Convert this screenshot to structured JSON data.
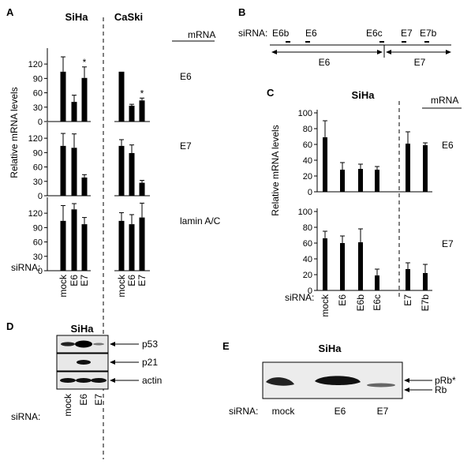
{
  "panel_letters": {
    "A": "A",
    "B": "B",
    "C": "C",
    "D": "D",
    "E": "E"
  },
  "common": {
    "siRNA_label": "siRNA:",
    "mRNA_label": "mRNA",
    "ylabel": "Relative mRNA levels",
    "sig_mark": "*"
  },
  "panel_b": {
    "siRNA_label": "siRNA:",
    "sites": [
      "E6b",
      "E6",
      "E6c",
      "E7",
      "E7b"
    ],
    "regions": [
      "E6",
      "E7"
    ]
  },
  "panel_d": {
    "title": "SiHa",
    "bands": [
      "p53",
      "p21",
      "actin"
    ],
    "lanes": [
      "mock",
      "E6",
      "E7"
    ]
  },
  "panel_e": {
    "title": "SiHa",
    "bands": [
      "pRb*",
      "Rb"
    ],
    "lanes": [
      "mock",
      "E6",
      "E7"
    ]
  },
  "chart_data": [
    {
      "type": "bar",
      "panel": "A",
      "groups": [
        "SiHa",
        "CaSki"
      ],
      "categories": [
        "mock",
        "E6",
        "E7"
      ],
      "ylim": [
        0,
        140
      ],
      "yticks": [
        0,
        30,
        60,
        90,
        120
      ],
      "ylabel": "Relative mRNA levels",
      "rows": [
        {
          "mRNA": "E6",
          "series": [
            {
              "group": "SiHa",
              "values": [
                104,
                41,
                91
              ],
              "errors": [
                31,
                14,
                23
              ],
              "significant": [
                false,
                false,
                true
              ]
            },
            {
              "group": "CaSki",
              "values": [
                104,
                33,
                44
              ],
              "errors": [
                0,
                3,
                5
              ],
              "significant": [
                false,
                false,
                true
              ]
            }
          ]
        },
        {
          "mRNA": "E7",
          "series": [
            {
              "group": "SiHa",
              "values": [
                104,
                100,
                38
              ],
              "errors": [
                26,
                29,
                6
              ],
              "significant": [
                false,
                false,
                false
              ]
            },
            {
              "group": "CaSki",
              "values": [
                104,
                89,
                27
              ],
              "errors": [
                13,
                17,
                5
              ],
              "significant": [
                false,
                false,
                false
              ]
            }
          ]
        },
        {
          "mRNA": "lamin A/C",
          "series": [
            {
              "group": "SiHa",
              "values": [
                104,
                128,
                97
              ],
              "errors": [
                32,
                12,
                14
              ],
              "significant": [
                false,
                false,
                false
              ]
            },
            {
              "group": "CaSki",
              "values": [
                104,
                97,
                111
              ],
              "errors": [
                17,
                20,
                30
              ],
              "significant": [
                false,
                false,
                false
              ]
            }
          ]
        }
      ]
    },
    {
      "type": "bar",
      "panel": "C",
      "title": "SiHa",
      "categories": [
        "mock",
        "E6",
        "E6b",
        "E6c",
        "E7",
        "E7b"
      ],
      "ylim": [
        0,
        100
      ],
      "yticks": [
        0,
        20,
        40,
        60,
        80,
        100
      ],
      "ylabel": "Relative mRNA levels",
      "rows": [
        {
          "mRNA": "E6",
          "values": [
            69,
            28,
            29,
            28,
            61,
            59
          ],
          "errors": [
            21,
            9,
            6,
            4,
            15,
            3
          ]
        },
        {
          "mRNA": "E7",
          "values": [
            66,
            60,
            61,
            19,
            27,
            22
          ],
          "errors": [
            9,
            9,
            17,
            8,
            8,
            11
          ]
        }
      ]
    }
  ]
}
